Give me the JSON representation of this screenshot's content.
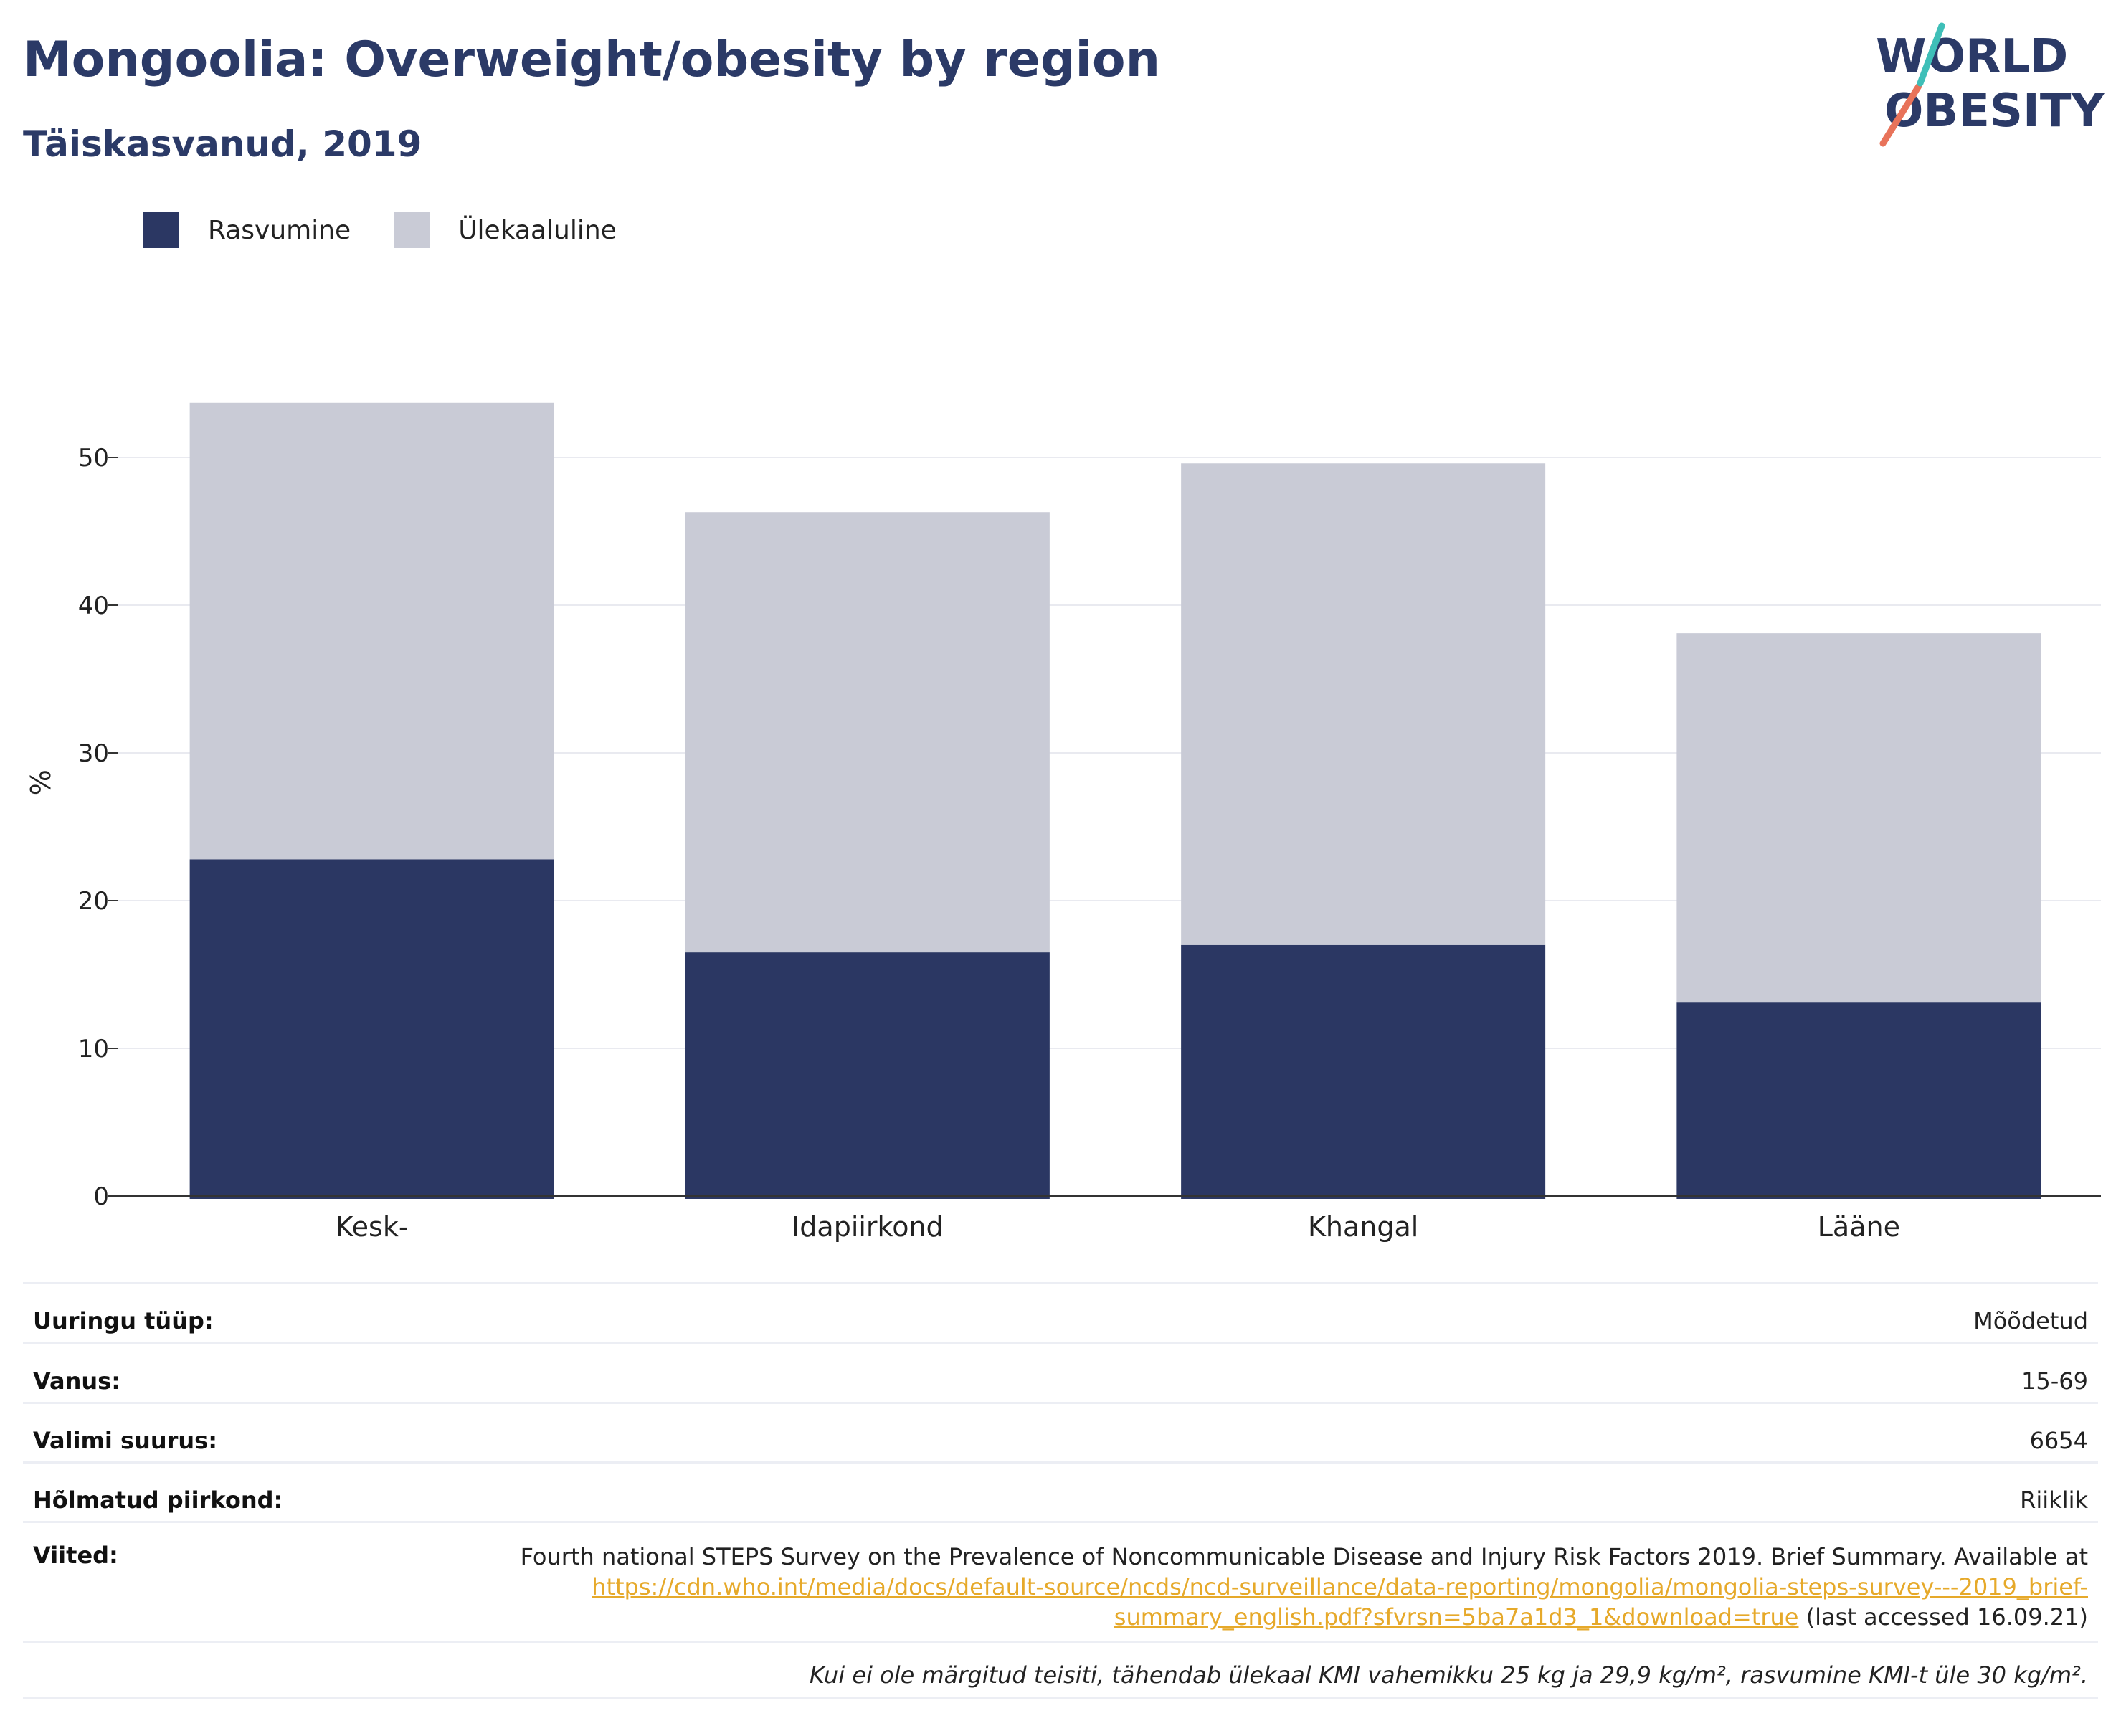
{
  "header": {
    "title": "Mongoolia: Overweight/obesity by region",
    "subtitle": "Täiskasvanud, 2019"
  },
  "logo": {
    "line1": "WORLD",
    "line2": "OBESITY"
  },
  "legend": [
    {
      "label": "Rasvumine",
      "color": "#2b3763"
    },
    {
      "label": "Ülekaaluline",
      "color": "#c9cbd6"
    }
  ],
  "chart_data": {
    "type": "bar",
    "stacked": true,
    "categories": [
      "Kesk-",
      "Idapiirkond",
      "Khangal",
      "Lääne"
    ],
    "series": [
      {
        "name": "Rasvumine",
        "values": [
          22.8,
          16.5,
          17.0,
          13.1
        ],
        "color": "#2b3763"
      },
      {
        "name": "Ülekaaluline",
        "values": [
          30.9,
          29.8,
          32.6,
          25.0
        ],
        "color": "#c9cbd6"
      }
    ],
    "ylabel": "%",
    "xlabel": "",
    "ylim": [
      0,
      60
    ],
    "yticks": [
      0,
      10,
      20,
      30,
      40,
      50
    ],
    "grid": true,
    "legend_position": "top-left"
  },
  "info": {
    "rows": [
      {
        "label": "Uuringu tüüp:",
        "value": "Mõõdetud"
      },
      {
        "label": "Vanus:",
        "value": "15-69"
      },
      {
        "label": "Valimi suurus:",
        "value": "6654"
      },
      {
        "label": "Hõlmatud piirkond:",
        "value": "Riiklik"
      }
    ],
    "references": {
      "label": "Viited:",
      "text_before": "Fourth national STEPS Survey on the Prevalence of Noncommunicable Disease and Injury Risk Factors 2019. Brief Summary. Available at ",
      "link": "https://cdn.who.int/media/docs/default-source/ncds/ncd-surveillance/data-reporting/mongolia/mongolia-steps-survey---2019_brief-summary_english.pdf?sfvrsn=5ba7a1d3_1&download=true",
      "text_after": " (last accessed 16.09.21)"
    },
    "footnote": "Kui ei ole märgitud teisiti, tähendab ülekaal KMI vahemikku 25 kg ja 29,9 kg/m², rasvumine KMI-t üle 30 kg/m²."
  }
}
